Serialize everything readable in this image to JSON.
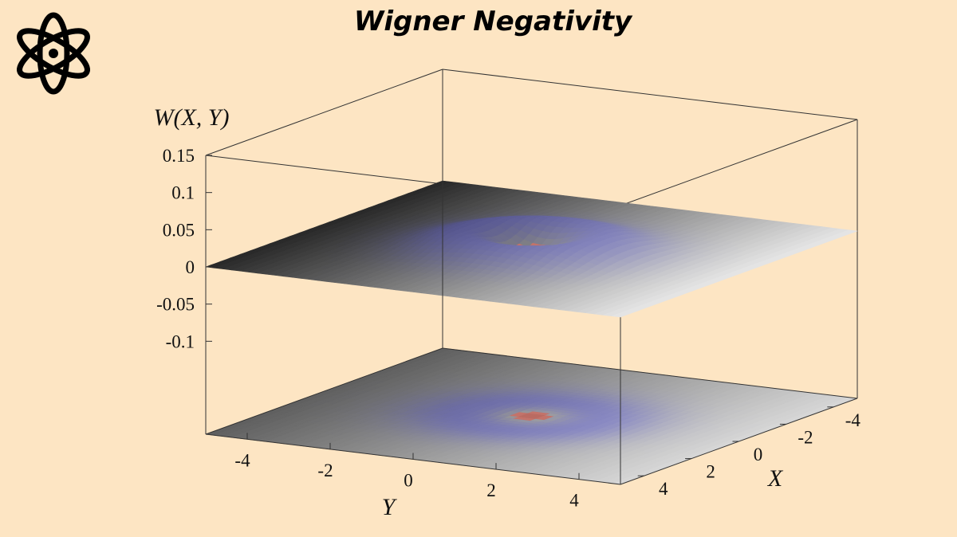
{
  "chart_data": {
    "type": "surface",
    "title": "Wigner Negativity",
    "zlabel": "W(X, Y)",
    "xlabel": "X",
    "ylabel": "Y",
    "zlim": [
      -0.225,
      0.15
    ],
    "zticks": [
      -0.1,
      -0.05,
      0,
      0.05,
      0.1,
      0.15
    ],
    "xlim": [
      -5,
      5
    ],
    "xticks": [
      -4,
      -2,
      0,
      2,
      4
    ],
    "ylim": [
      -5,
      5
    ],
    "yticks": [
      -4,
      -2,
      0,
      2,
      4
    ]
  }
}
